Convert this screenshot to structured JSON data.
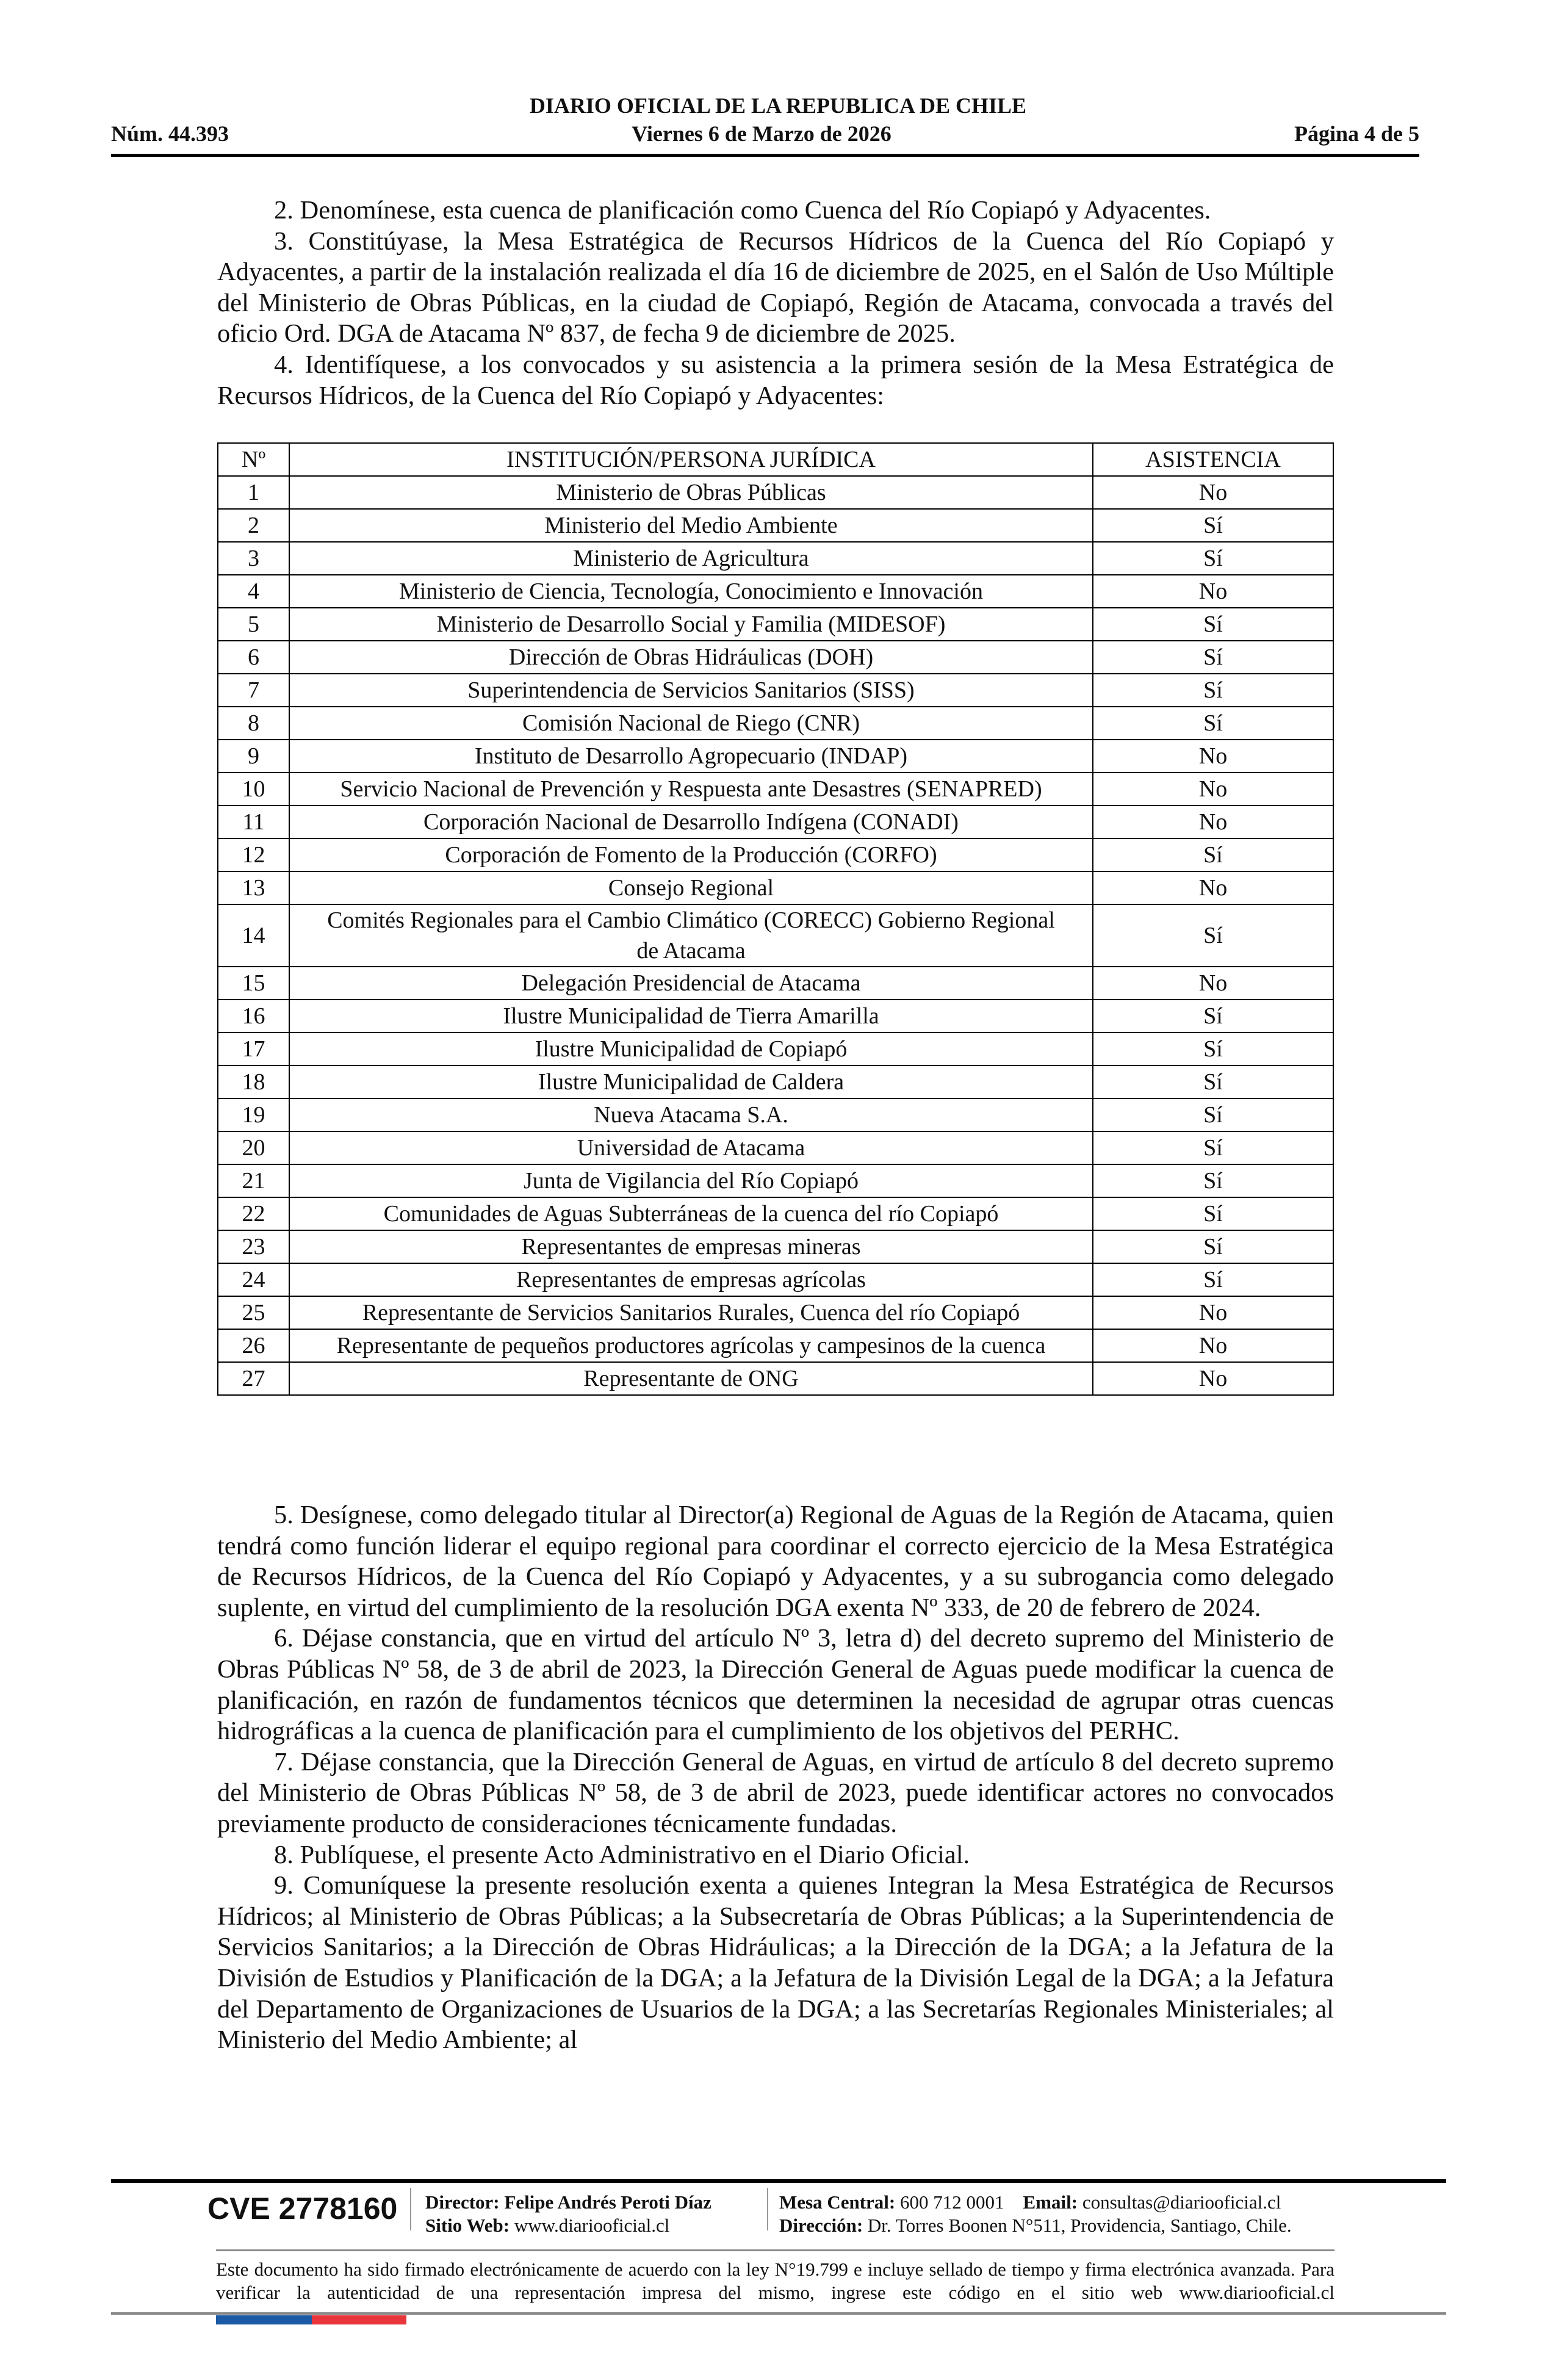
{
  "header": {
    "title": "DIARIO OFICIAL DE LA REPUBLICA DE CHILE",
    "number": "Núm. 44.393",
    "date": "Viernes 6 de Marzo de 2026",
    "page": "Página 4 de 5"
  },
  "paragraphs_top": [
    "2. Denomínese, esta cuenca de planificación como Cuenca del Río Copiapó y Adyacentes.",
    "3. Constitúyase, la Mesa Estratégica de Recursos Hídricos de la Cuenca del Río Copiapó y Adyacentes, a partir de la instalación realizada el día 16 de diciembre de 2025, en el Salón de Uso Múltiple del Ministerio de Obras Públicas, en la ciudad de Copiapó, Región de Atacama, convocada a través del oficio Ord. DGA de Atacama Nº 837, de fecha 9 de diciembre de 2025.",
    "4. Identifíquese, a los convocados y su asistencia a la primera sesión de la Mesa Estratégica de Recursos Hídricos, de la Cuenca del Río Copiapó y Adyacentes:"
  ],
  "table": {
    "headers": [
      "Nº",
      "INSTITUCIÓN/PERSONA JURÍDICA",
      "ASISTENCIA"
    ],
    "rows": [
      [
        "1",
        "Ministerio de Obras Públicas",
        "No"
      ],
      [
        "2",
        "Ministerio del Medio Ambiente",
        "Sí"
      ],
      [
        "3",
        "Ministerio de Agricultura",
        "Sí"
      ],
      [
        "4",
        "Ministerio de Ciencia, Tecnología, Conocimiento e Innovación",
        "No"
      ],
      [
        "5",
        "Ministerio de Desarrollo Social y Familia (MIDESOF)",
        "Sí"
      ],
      [
        "6",
        "Dirección de Obras Hidráulicas (DOH)",
        "Sí"
      ],
      [
        "7",
        "Superintendencia de Servicios Sanitarios (SISS)",
        "Sí"
      ],
      [
        "8",
        "Comisión Nacional de Riego (CNR)",
        "Sí"
      ],
      [
        "9",
        "Instituto de Desarrollo Agropecuario (INDAP)",
        "No"
      ],
      [
        "10",
        "Servicio Nacional de Prevención y Respuesta ante Desastres (SENAPRED)",
        "No"
      ],
      [
        "11",
        "Corporación Nacional de Desarrollo Indígena (CONADI)",
        "No"
      ],
      [
        "12",
        "Corporación de Fomento de la Producción (CORFO)",
        "Sí"
      ],
      [
        "13",
        "Consejo Regional",
        "No"
      ],
      [
        "14",
        "Comités Regionales para el Cambio Climático (CORECC) Gobierno Regional de Atacama",
        "Sí"
      ],
      [
        "15",
        "Delegación Presidencial de Atacama",
        "No"
      ],
      [
        "16",
        "Ilustre Municipalidad de Tierra Amarilla",
        "Sí"
      ],
      [
        "17",
        "Ilustre Municipalidad de Copiapó",
        "Sí"
      ],
      [
        "18",
        "Ilustre Municipalidad de Caldera",
        "Sí"
      ],
      [
        "19",
        "Nueva Atacama S.A.",
        "Sí"
      ],
      [
        "20",
        "Universidad de Atacama",
        "Sí"
      ],
      [
        "21",
        "Junta de Vigilancia del Río Copiapó",
        "Sí"
      ],
      [
        "22",
        "Comunidades de Aguas Subterráneas de la cuenca del río Copiapó",
        "Sí"
      ],
      [
        "23",
        "Representantes de empresas mineras",
        "Sí"
      ],
      [
        "24",
        "Representantes de empresas agrícolas",
        "Sí"
      ],
      [
        "25",
        "Representante de Servicios Sanitarios Rurales, Cuenca del río Copiapó",
        "No"
      ],
      [
        "26",
        "Representante de pequeños productores agrícolas y campesinos de la cuenca",
        "No"
      ],
      [
        "27",
        "Representante de ONG",
        "No"
      ]
    ]
  },
  "paragraphs_bottom": [
    "5. Desígnese, como delegado titular al Director(a) Regional de Aguas de la Región de Atacama, quien tendrá como función liderar el equipo regional para coordinar el correcto ejercicio de la Mesa Estratégica de Recursos Hídricos, de la Cuenca del Río Copiapó y Adyacentes, y a su subrogancia como delegado suplente, en virtud del cumplimiento de la resolución DGA exenta Nº 333, de 20 de febrero de 2024.",
    "6. Déjase constancia, que en virtud del artículo Nº 3, letra d) del decreto supremo del Ministerio de Obras Públicas Nº 58, de 3 de abril de 2023, la Dirección General de Aguas puede modificar la cuenca de planificación, en razón de fundamentos técnicos que determinen la necesidad de agrupar otras cuencas hidrográficas a la cuenca de planificación para el cumplimiento de los objetivos del PERHC.",
    "7. Déjase constancia, que la Dirección General de Aguas, en virtud de artículo 8 del decreto supremo del Ministerio de Obras Públicas Nº 58, de 3 de abril de 2023, puede identificar actores no convocados previamente producto de consideraciones técnicamente fundadas.",
    "8. Publíquese, el presente Acto Administrativo en el Diario Oficial.",
    "9. Comuníquese la presente resolución exenta a quienes Integran la Mesa Estratégica de Recursos Hídricos; al Ministerio de Obras Públicas; a la Subsecretaría de Obras Públicas; a la Superintendencia de Servicios Sanitarios; a la Dirección de Obras Hidráulicas; a la Dirección de la DGA; a la Jefatura de la División de Estudios y Planificación de la DGA; a la Jefatura de la División Legal de la DGA; a la Jefatura del Departamento de Organizaciones de Usuarios de la DGA; a las Secretarías Regionales Ministeriales; al Ministerio del Medio Ambiente; al"
  ],
  "footer": {
    "cve": "CVE 2778160",
    "director_label": "Director:",
    "director": "Felipe Andrés Peroti Díaz",
    "web_label": "Sitio Web:",
    "web": "www.diariooficial.cl",
    "phone_label": "Mesa Central:",
    "phone": "600 712 0001",
    "email_label": "Email:",
    "email": "consultas@diariooficial.cl",
    "address_label": "Dirección:",
    "address": "Dr. Torres Boonen N°511, Providencia, Santiago, Chile.",
    "disclaimer": "Este documento ha sido firmado electrónicamente de acuerdo con la ley N°19.799 e incluye sellado de tiempo y firma electrónica avanzada. Para verificar la autenticidad de una representación impresa del mismo, ingrese este código en el sitio web www.diariooficial.cl",
    "flag_colors": [
      "#1c5aa6",
      "#e8363c"
    ]
  }
}
